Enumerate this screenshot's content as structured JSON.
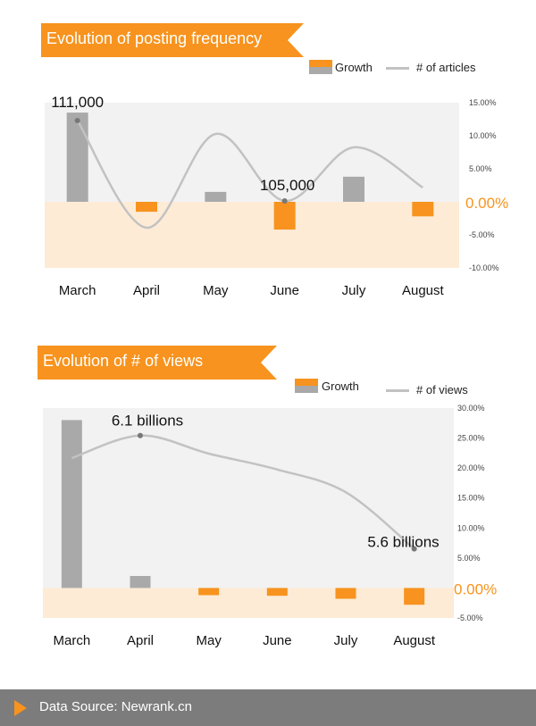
{
  "colors": {
    "accent": "#f7931e",
    "grey_bar": "#a9a9a9",
    "line": "#c2c2c2",
    "neg_band": "#fdebd6",
    "pos_band": "#f2f2f2",
    "footer_bg": "#7c7c7c"
  },
  "footer": {
    "text": "Data Source: Newrank.cn",
    "icon": "play-triangle-icon"
  },
  "chart_data": [
    {
      "type": "bar",
      "title": "Evolution of posting frequency",
      "categories": [
        "March",
        "April",
        "May",
        "June",
        "July",
        "August"
      ],
      "series": [
        {
          "name": "Growth",
          "values": [
            13.5,
            -1.5,
            1.5,
            -4.2,
            3.8,
            -2.2
          ]
        },
        {
          "name": "# of articles",
          "type": "line",
          "values": [
            111000,
            103000,
            110000,
            105000,
            109000,
            106000
          ]
        }
      ],
      "annotations": [
        "111,000",
        "105,000"
      ],
      "y_right_ticks": [
        "15.00%",
        "10.00%",
        "5.00%",
        "0.00%",
        "-5.00%",
        "-10.00%"
      ],
      "ylim": [
        -10,
        15
      ]
    },
    {
      "type": "bar",
      "title": "Evolution of # of views",
      "categories": [
        "March",
        "April",
        "May",
        "June",
        "July",
        "August"
      ],
      "series": [
        {
          "name": "Growth",
          "values": [
            28.0,
            2.0,
            -1.2,
            -1.3,
            -1.8,
            -2.8
          ]
        },
        {
          "name": "# of views",
          "type": "line",
          "values": [
            6.0,
            6.1,
            6.02,
            5.95,
            5.85,
            5.6
          ]
        }
      ],
      "annotations": [
        "6.1 billions",
        "5.6 billions"
      ],
      "y_right_ticks": [
        "30.00%",
        "25.00%",
        "20.00%",
        "15.00%",
        "10.00%",
        "5.00%",
        "0.00%",
        "-5.00%"
      ],
      "ylim": [
        -5,
        30
      ]
    }
  ]
}
